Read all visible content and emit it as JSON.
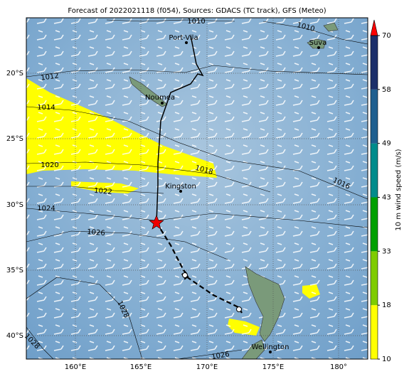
{
  "title": "Forecast of 2022021118 (f054), Sources: GDACS (TC track), GFS (Meteo)",
  "lon_ticks": [
    "160°E",
    "165°E",
    "170°E",
    "175°E",
    "180°"
  ],
  "lat_ticks": [
    "20°S",
    "25°S",
    "30°S",
    "35°S",
    "40°S"
  ],
  "places": [
    "Port-Vila",
    "Suva",
    "Noumea",
    "Kingston",
    "Wellington"
  ],
  "isobar_labels": [
    "1010",
    "1010",
    "1012",
    "1014",
    "1016",
    "1018",
    "1020",
    "1022",
    "1024",
    "1026",
    "1028",
    "1028",
    "1026"
  ],
  "colorbar": {
    "label": "10 m wind speed (m/s)",
    "ticks": [
      10,
      18,
      33,
      43,
      49,
      58,
      70
    ]
  }
}
